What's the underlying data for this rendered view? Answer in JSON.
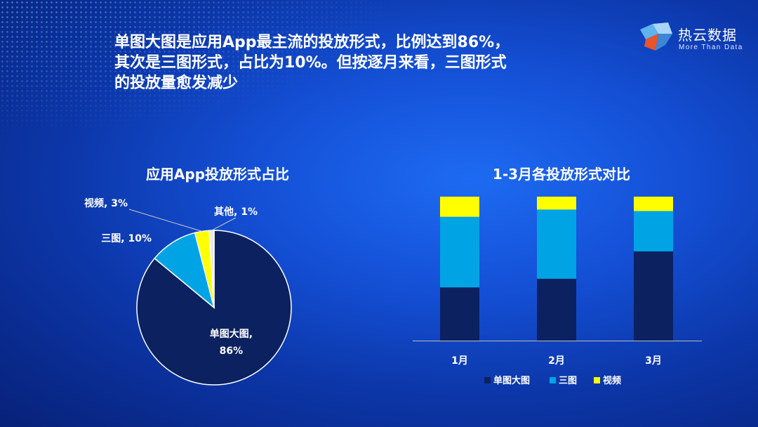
{
  "headline": {
    "line1": "单图大图是应用App最主流的投放形式，比例达到86%，",
    "line2": "其次是三图形式，占比为10%。但按逐月来看，三图形式",
    "line3": "的投放量愈发减少"
  },
  "logo": {
    "name": "热云数据",
    "slogan": "More Than Data",
    "icon": "cube-logo-icon"
  },
  "colors": {
    "single_large": "#0b2160",
    "three_image": "#00a4e4",
    "video": "#ffff00",
    "other": "#e8e8e8"
  },
  "chart_data": [
    {
      "type": "pie",
      "title": "应用App投放形式占比",
      "slices": [
        {
          "name": "单图大图",
          "value": 86,
          "label_line1": "单图大图,",
          "label_line2": "86%"
        },
        {
          "name": "三图",
          "value": 10,
          "label": "三图, 10%"
        },
        {
          "name": "视频",
          "value": 3,
          "label": "视频, 3%"
        },
        {
          "name": "其他",
          "value": 1,
          "label": "其他, 1%"
        }
      ]
    },
    {
      "type": "bar",
      "stacked": true,
      "title": "1-3月各投放形式对比",
      "categories": [
        "1月",
        "2月",
        "3月"
      ],
      "series": [
        {
          "name": "单图大图",
          "values": [
            37,
            43,
            62
          ]
        },
        {
          "name": "三图",
          "values": [
            49,
            48,
            28
          ]
        },
        {
          "name": "视频",
          "values": [
            14,
            9,
            10
          ]
        }
      ],
      "ylim": [
        0,
        100
      ],
      "legend_position": "bottom",
      "grid": false
    }
  ]
}
